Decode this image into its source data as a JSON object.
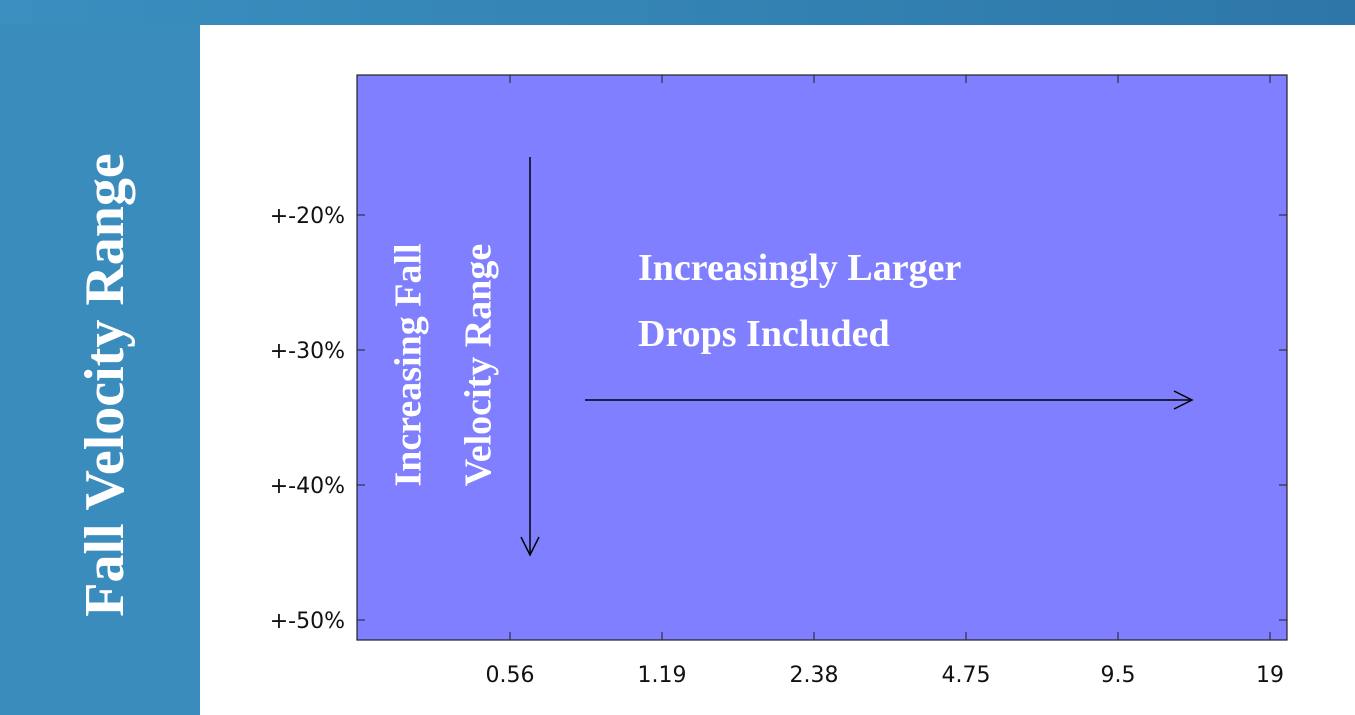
{
  "slide": {
    "side_title": "Fall Velocity Range"
  },
  "plot": {
    "y_tick_labels": [
      "+-20%",
      "+-30%",
      "+-40%",
      "+-50%"
    ],
    "x_tick_labels": [
      "0.56",
      "1.19",
      "2.38",
      "4.75",
      "9.5",
      "19"
    ],
    "vertical_note": [
      "Increasing Fall",
      "Velocity Range"
    ],
    "horizontal_note": [
      "Increasingly Larger",
      "Drops Included"
    ]
  }
}
